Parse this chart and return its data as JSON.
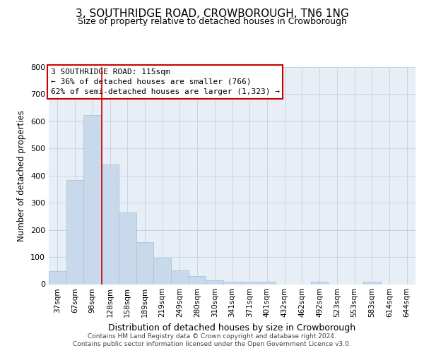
{
  "title": "3, SOUTHRIDGE ROAD, CROWBOROUGH, TN6 1NG",
  "subtitle": "Size of property relative to detached houses in Crowborough",
  "xlabel": "Distribution of detached houses by size in Crowborough",
  "ylabel": "Number of detached properties",
  "bar_labels": [
    "37sqm",
    "67sqm",
    "98sqm",
    "128sqm",
    "158sqm",
    "189sqm",
    "219sqm",
    "249sqm",
    "280sqm",
    "310sqm",
    "341sqm",
    "371sqm",
    "401sqm",
    "432sqm",
    "462sqm",
    "492sqm",
    "523sqm",
    "553sqm",
    "583sqm",
    "614sqm",
    "644sqm"
  ],
  "bar_values": [
    47,
    383,
    622,
    440,
    265,
    155,
    95,
    50,
    30,
    15,
    10,
    10,
    10,
    0,
    0,
    10,
    0,
    0,
    10,
    0,
    0
  ],
  "bar_color": "#c8d9ec",
  "bar_edge_color": "#a8c4de",
  "grid_color": "#c8d4e4",
  "background_color": "#e8eef6",
  "annotation_title": "3 SOUTHRIDGE ROAD: 115sqm",
  "annotation_line1": "← 36% of detached houses are smaller (766)",
  "annotation_line2": "62% of semi-detached houses are larger (1,323) →",
  "annotation_box_color": "#ffffff",
  "annotation_box_edge": "#cc0000",
  "vline_color": "#cc0000",
  "vline_x": 2.55,
  "ylim": [
    0,
    800
  ],
  "yticks": [
    0,
    100,
    200,
    300,
    400,
    500,
    600,
    700,
    800
  ],
  "footnote1": "Contains HM Land Registry data © Crown copyright and database right 2024.",
  "footnote2": "Contains public sector information licensed under the Open Government Licence v3.0."
}
